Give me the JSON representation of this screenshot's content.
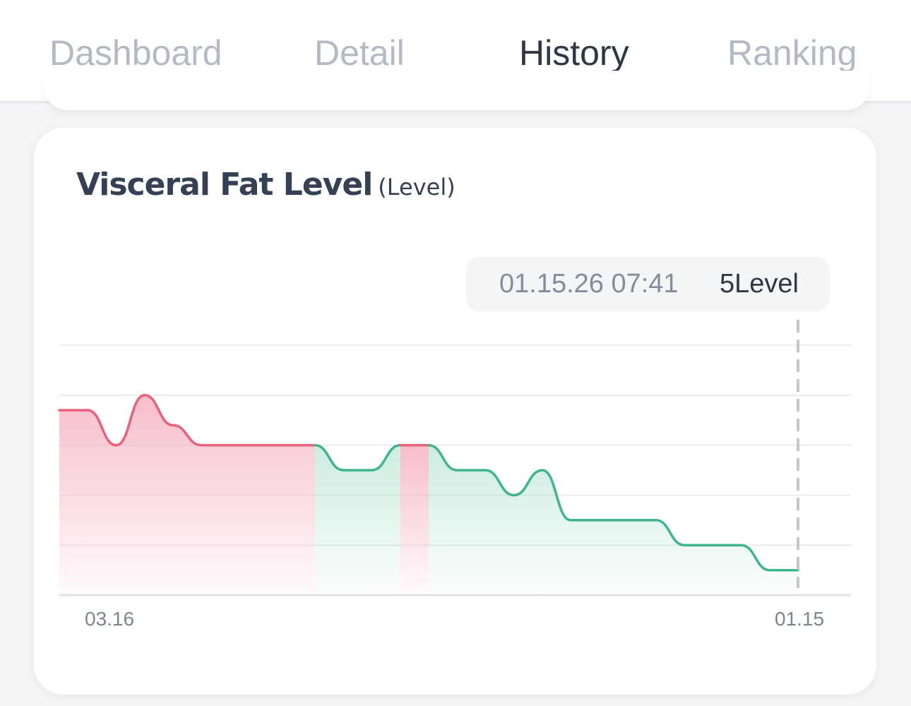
{
  "tabs": [
    {
      "label": "Dashboard",
      "active": false
    },
    {
      "label": "Detail",
      "active": false
    },
    {
      "label": "History",
      "active": true
    },
    {
      "label": "Ranking",
      "active": false
    }
  ],
  "card": {
    "title": "Visceral Fat Level",
    "unit": "(Level)"
  },
  "tooltip": {
    "time": "01.15.26 07:41",
    "value": "5Level"
  },
  "colors": {
    "above": "#e8607a",
    "below": "#3fb58c",
    "text_dark": "#2f3744",
    "text_muted": "#b4bac3"
  },
  "chart_data": {
    "type": "area",
    "x_tick_labels": [
      "03.16",
      "01.15"
    ],
    "threshold": 7,
    "ylim": [
      4,
      9
    ],
    "grid": true,
    "series": [
      {
        "values": [
          7.7,
          7.7,
          7.0,
          8.0,
          7.4,
          7.0,
          7.0,
          7.0,
          7.0,
          7.0,
          6.5,
          6.5,
          7.0,
          7.0,
          6.5,
          6.5,
          6.0,
          6.5,
          5.5,
          5.5,
          5.5,
          5.5,
          5.0,
          5.0,
          5.0,
          4.5,
          4.5
        ]
      }
    ]
  }
}
